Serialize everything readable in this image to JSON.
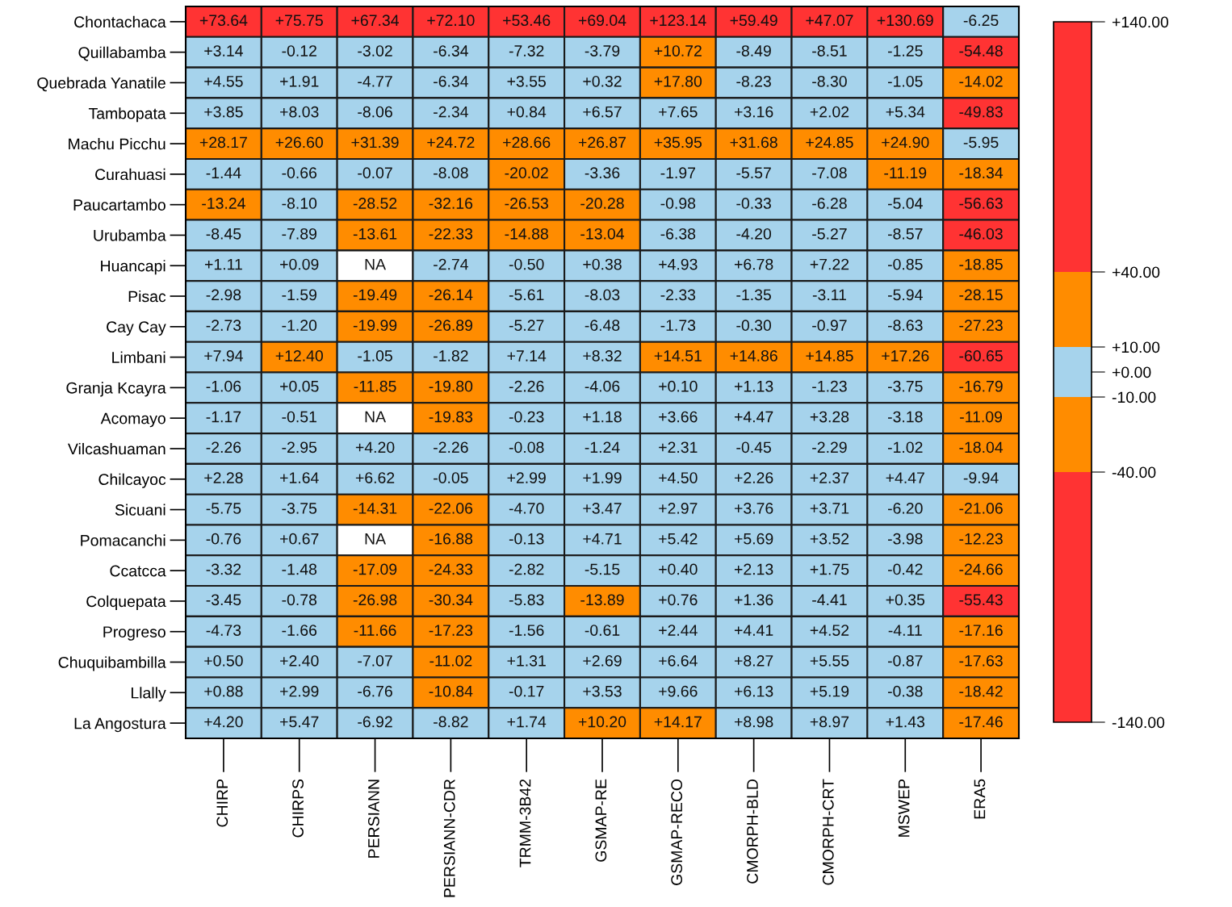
{
  "chart_data": {
    "type": "heatmap",
    "categories": [
      "CHIRP",
      "CHIRPS",
      "PERSIANN",
      "PERSIANN-CDR",
      "TRMM-3B42",
      "GSMAP-RE",
      "GSMAP-RECO",
      "CMORPH-BLD",
      "CMORPH-CRT",
      "MSWEP",
      "ERA5"
    ],
    "y_categories": [
      "Chontachaca",
      "Quillabamba",
      "Quebrada Yanatile",
      "Tambopata",
      "Machu Picchu",
      "Curahuasi",
      "Paucartambo",
      "Urubamba",
      "Huancapi",
      "Pisac",
      "Cay Cay",
      "Limbani",
      "Granja Kcayra",
      "Acomayo",
      "Vilcashuaman",
      "Chilcayoc",
      "Sicuani",
      "Pomacanchi",
      "Ccatcca",
      "Colquepata",
      "Progreso",
      "Chuquibambilla",
      "Llally",
      "La Angostura"
    ],
    "cells": [
      [
        73.64,
        75.75,
        67.34,
        72.1,
        53.46,
        69.04,
        123.14,
        59.49,
        47.07,
        130.69,
        -6.25
      ],
      [
        3.14,
        -0.12,
        -3.02,
        -6.34,
        -7.32,
        -3.79,
        10.72,
        -8.49,
        -8.51,
        -1.25,
        -54.48
      ],
      [
        4.55,
        1.91,
        -4.77,
        -6.34,
        3.55,
        0.32,
        17.8,
        -8.23,
        -8.3,
        -1.05,
        -14.02
      ],
      [
        3.85,
        8.03,
        -8.06,
        -2.34,
        0.84,
        6.57,
        7.65,
        3.16,
        2.02,
        5.34,
        -49.83
      ],
      [
        28.17,
        26.6,
        31.39,
        24.72,
        28.66,
        26.87,
        35.95,
        31.68,
        24.85,
        24.9,
        -5.95
      ],
      [
        -1.44,
        -0.66,
        -0.07,
        -8.08,
        -20.02,
        -3.36,
        -1.97,
        -5.57,
        -7.08,
        -11.19,
        -18.34
      ],
      [
        -13.24,
        -8.1,
        -28.52,
        -32.16,
        -26.53,
        -20.28,
        -0.98,
        -0.33,
        -6.28,
        -5.04,
        -56.63
      ],
      [
        -8.45,
        -7.89,
        -13.61,
        -22.33,
        -14.88,
        -13.04,
        -6.38,
        -4.2,
        -5.27,
        -8.57,
        -46.03
      ],
      [
        1.11,
        0.09,
        null,
        -2.74,
        -0.5,
        0.38,
        4.93,
        6.78,
        7.22,
        -0.85,
        -18.85
      ],
      [
        -2.98,
        -1.59,
        -19.49,
        -26.14,
        -5.61,
        -8.03,
        -2.33,
        -1.35,
        -3.11,
        -5.94,
        -28.15
      ],
      [
        -2.73,
        -1.2,
        -19.99,
        -26.89,
        -5.27,
        -6.48,
        -1.73,
        -0.3,
        -0.97,
        -8.63,
        -27.23
      ],
      [
        7.94,
        12.4,
        -1.05,
        -1.82,
        7.14,
        8.32,
        14.51,
        14.86,
        14.85,
        17.26,
        -60.65
      ],
      [
        -1.06,
        0.05,
        -11.85,
        -19.8,
        -2.26,
        -4.06,
        0.1,
        1.13,
        -1.23,
        -3.75,
        -16.79
      ],
      [
        -1.17,
        -0.51,
        null,
        -19.83,
        -0.23,
        1.18,
        3.66,
        4.47,
        3.28,
        -3.18,
        -11.09
      ],
      [
        -2.26,
        -2.95,
        4.2,
        -2.26,
        -0.08,
        -1.24,
        2.31,
        -0.45,
        -2.29,
        -1.02,
        -18.04
      ],
      [
        2.28,
        1.64,
        6.62,
        -0.05,
        2.99,
        1.99,
        4.5,
        2.26,
        2.37,
        4.47,
        -9.94
      ],
      [
        -5.75,
        -3.75,
        -14.31,
        -22.06,
        -4.7,
        3.47,
        2.97,
        3.76,
        3.71,
        -6.2,
        -21.06
      ],
      [
        -0.76,
        0.67,
        null,
        -16.88,
        -0.13,
        4.71,
        5.42,
        5.69,
        3.52,
        -3.98,
        -12.23
      ],
      [
        -3.32,
        -1.48,
        -17.09,
        -24.33,
        -2.82,
        -5.15,
        0.4,
        2.13,
        1.75,
        -0.42,
        -24.66
      ],
      [
        -3.45,
        -0.78,
        -26.98,
        -30.34,
        -5.83,
        -13.89,
        0.76,
        1.36,
        -4.41,
        0.35,
        -55.43
      ],
      [
        -4.73,
        -1.66,
        -11.66,
        -17.23,
        -1.56,
        -0.61,
        2.44,
        4.41,
        4.52,
        -4.11,
        -17.16
      ],
      [
        0.5,
        2.4,
        -7.07,
        -11.02,
        1.31,
        2.69,
        6.64,
        8.27,
        5.55,
        -0.87,
        -17.63
      ],
      [
        0.88,
        2.99,
        -6.76,
        -10.84,
        -0.17,
        3.53,
        9.66,
        6.13,
        5.19,
        -0.38,
        -18.42
      ],
      [
        4.2,
        5.47,
        -6.92,
        -8.82,
        1.74,
        10.2,
        14.17,
        8.98,
        8.97,
        1.43,
        -17.46
      ]
    ],
    "cell_labels": [
      [
        "+73.64",
        "+75.75",
        "+67.34",
        "+72.10",
        "+53.46",
        "+69.04",
        "+123.14",
        "+59.49",
        "+47.07",
        "+130.69",
        "-6.25"
      ],
      [
        "+3.14",
        "-0.12",
        "-3.02",
        "-6.34",
        "-7.32",
        "-3.79",
        "+10.72",
        "-8.49",
        "-8.51",
        "-1.25",
        "-54.48"
      ],
      [
        "+4.55",
        "+1.91",
        "-4.77",
        "-6.34",
        "+3.55",
        "+0.32",
        "+17.80",
        "-8.23",
        "-8.30",
        "-1.05",
        "-14.02"
      ],
      [
        "+3.85",
        "+8.03",
        "-8.06",
        "-2.34",
        "+0.84",
        "+6.57",
        "+7.65",
        "+3.16",
        "+2.02",
        "+5.34",
        "-49.83"
      ],
      [
        "+28.17",
        "+26.60",
        "+31.39",
        "+24.72",
        "+28.66",
        "+26.87",
        "+35.95",
        "+31.68",
        "+24.85",
        "+24.90",
        "-5.95"
      ],
      [
        "-1.44",
        "-0.66",
        "-0.07",
        "-8.08",
        "-20.02",
        "-3.36",
        "-1.97",
        "-5.57",
        "-7.08",
        "-11.19",
        "-18.34"
      ],
      [
        "-13.24",
        "-8.10",
        "-28.52",
        "-32.16",
        "-26.53",
        "-20.28",
        "-0.98",
        "-0.33",
        "-6.28",
        "-5.04",
        "-56.63"
      ],
      [
        "-8.45",
        "-7.89",
        "-13.61",
        "-22.33",
        "-14.88",
        "-13.04",
        "-6.38",
        "-4.20",
        "-5.27",
        "-8.57",
        "-46.03"
      ],
      [
        "+1.11",
        "+0.09",
        "NA",
        "-2.74",
        "-0.50",
        "+0.38",
        "+4.93",
        "+6.78",
        "+7.22",
        "-0.85",
        "-18.85"
      ],
      [
        "-2.98",
        "-1.59",
        "-19.49",
        "-26.14",
        "-5.61",
        "-8.03",
        "-2.33",
        "-1.35",
        "-3.11",
        "-5.94",
        "-28.15"
      ],
      [
        "-2.73",
        "-1.20",
        "-19.99",
        "-26.89",
        "-5.27",
        "-6.48",
        "-1.73",
        "-0.30",
        "-0.97",
        "-8.63",
        "-27.23"
      ],
      [
        "+7.94",
        "+12.40",
        "-1.05",
        "-1.82",
        "+7.14",
        "+8.32",
        "+14.51",
        "+14.86",
        "+14.85",
        "+17.26",
        "-60.65"
      ],
      [
        "-1.06",
        "+0.05",
        "-11.85",
        "-19.80",
        "-2.26",
        "-4.06",
        "+0.10",
        "+1.13",
        "-1.23",
        "-3.75",
        "-16.79"
      ],
      [
        "-1.17",
        "-0.51",
        "NA",
        "-19.83",
        "-0.23",
        "+1.18",
        "+3.66",
        "+4.47",
        "+3.28",
        "-3.18",
        "-11.09"
      ],
      [
        "-2.26",
        "-2.95",
        "+4.20",
        "-2.26",
        "-0.08",
        "-1.24",
        "+2.31",
        "-0.45",
        "-2.29",
        "-1.02",
        "-18.04"
      ],
      [
        "+2.28",
        "+1.64",
        "+6.62",
        "-0.05",
        "+2.99",
        "+1.99",
        "+4.50",
        "+2.26",
        "+2.37",
        "+4.47",
        "-9.94"
      ],
      [
        "-5.75",
        "-3.75",
        "-14.31",
        "-22.06",
        "-4.70",
        "+3.47",
        "+2.97",
        "+3.76",
        "+3.71",
        "-6.20",
        "-21.06"
      ],
      [
        "-0.76",
        "+0.67",
        "NA",
        "-16.88",
        "-0.13",
        "+4.71",
        "+5.42",
        "+5.69",
        "+3.52",
        "-3.98",
        "-12.23"
      ],
      [
        "-3.32",
        "-1.48",
        "-17.09",
        "-24.33",
        "-2.82",
        "-5.15",
        "+0.40",
        "+2.13",
        "+1.75",
        "-0.42",
        "-24.66"
      ],
      [
        "-3.45",
        "-0.78",
        "-26.98",
        "-30.34",
        "-5.83",
        "-13.89",
        "+0.76",
        "+1.36",
        "-4.41",
        "+0.35",
        "-55.43"
      ],
      [
        "-4.73",
        "-1.66",
        "-11.66",
        "-17.23",
        "-1.56",
        "-0.61",
        "+2.44",
        "+4.41",
        "+4.52",
        "-4.11",
        "-17.16"
      ],
      [
        "+0.50",
        "+2.40",
        "-7.07",
        "-11.02",
        "+1.31",
        "+2.69",
        "+6.64",
        "+8.27",
        "+5.55",
        "-0.87",
        "-17.63"
      ],
      [
        "+0.88",
        "+2.99",
        "-6.76",
        "-10.84",
        "-0.17",
        "+3.53",
        "+9.66",
        "+6.13",
        "+5.19",
        "-0.38",
        "-18.42"
      ],
      [
        "+4.20",
        "+5.47",
        "-6.92",
        "-8.82",
        "+1.74",
        "+10.20",
        "+14.17",
        "+8.98",
        "+8.97",
        "+1.43",
        "-17.46"
      ]
    ],
    "colors": [
      "#ff3333",
      "#ff8c00",
      "#a6d3ec",
      "#a6d3ec",
      "#ff8c00",
      "#ff3333"
    ],
    "clim": [
      -140,
      140
    ],
    "cticks": [
      {
        "value": -140,
        "label": "-140.00"
      },
      {
        "value": -40,
        "label": "-40.00"
      },
      {
        "value": -10,
        "label": "-10.00"
      },
      {
        "value": 0,
        "label": "+0.00"
      },
      {
        "value": 10,
        "label": "+10.00"
      },
      {
        "value": 40,
        "label": "+40.00"
      },
      {
        "value": 140,
        "label": "+140.00"
      }
    ]
  }
}
